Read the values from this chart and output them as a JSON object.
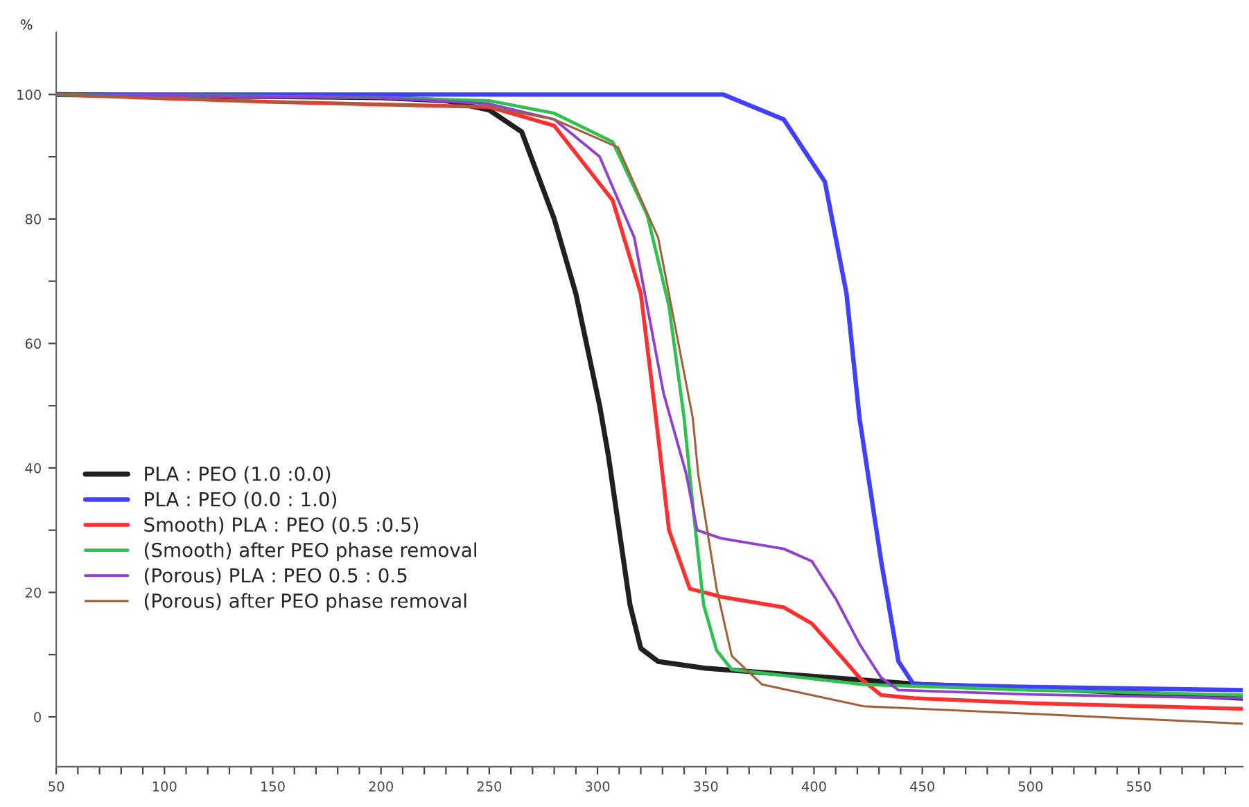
{
  "chart_data": {
    "type": "line",
    "ylabel": "%",
    "xlim": [
      50,
      598
    ],
    "ylim": [
      -8,
      110
    ],
    "xticks": [
      50,
      {
        "value": 60,
        "label": null
      },
      {
        "value": 70,
        "label": null
      },
      {
        "value": 80,
        "label": null
      },
      {
        "value": 90,
        "label": null
      },
      100,
      {
        "value": 110,
        "label": null
      },
      {
        "value": 120,
        "label": null
      },
      {
        "value": 130,
        "label": null
      },
      {
        "value": 140,
        "label": null
      },
      150,
      {
        "value": 160,
        "label": null
      },
      {
        "value": 170,
        "label": null
      },
      {
        "value": 180,
        "label": null
      },
      {
        "value": 190,
        "label": null
      },
      200,
      {
        "value": 210,
        "label": null
      },
      {
        "value": 220,
        "label": null
      },
      {
        "value": 230,
        "label": null
      },
      {
        "value": 240,
        "label": null
      },
      250,
      {
        "value": 260,
        "label": null
      },
      {
        "value": 270,
        "label": null
      },
      {
        "value": 280,
        "label": null
      },
      {
        "value": 290,
        "label": null
      },
      300,
      {
        "value": 310,
        "label": null
      },
      {
        "value": 320,
        "label": null
      },
      {
        "value": 330,
        "label": null
      },
      {
        "value": 340,
        "label": null
      },
      350,
      {
        "value": 360,
        "label": null
      },
      {
        "value": 370,
        "label": null
      },
      {
        "value": 380,
        "label": null
      },
      {
        "value": 390,
        "label": null
      },
      400,
      {
        "value": 410,
        "label": null
      },
      {
        "value": 420,
        "label": null
      },
      {
        "value": 430,
        "label": null
      },
      {
        "value": 440,
        "label": null
      },
      450,
      {
        "value": 460,
        "label": null
      },
      {
        "value": 470,
        "label": null
      },
      {
        "value": 480,
        "label": null
      },
      {
        "value": 490,
        "label": null
      },
      500,
      {
        "value": 510,
        "label": null
      },
      {
        "value": 520,
        "label": null
      },
      {
        "value": 530,
        "label": null
      },
      {
        "value": 540,
        "label": null
      },
      550,
      {
        "value": 560,
        "label": null
      },
      {
        "value": 570,
        "label": null
      },
      {
        "value": 580,
        "label": null
      },
      {
        "value": 590,
        "label": null
      }
    ],
    "yticks": [
      0,
      {
        "value": 10,
        "label": null
      },
      20,
      {
        "value": 30,
        "label": null
      },
      40,
      {
        "value": 50,
        "label": null
      },
      60,
      {
        "value": 70,
        "label": null
      },
      80,
      {
        "value": 90,
        "label": null
      },
      100
    ],
    "grid": false,
    "legend": "left",
    "line_style": "solid",
    "marker": "none",
    "series": [
      {
        "name": "PLA : PEO (1.0 :0.0)",
        "color": "#202020",
        "x": [
          50,
          200,
          230,
          250,
          265,
          280,
          290,
          301,
          305,
          310,
          315,
          320,
          328,
          350,
          400,
          450,
          500,
          550,
          598
        ],
        "values": [
          100,
          99.5,
          99,
          97.5,
          94,
          80,
          68,
          50,
          42,
          30,
          18,
          11,
          8.9,
          7.8,
          6.5,
          5.2,
          4.6,
          3.8,
          3.0
        ]
      },
      {
        "name": "PLA : PEO (0.0 : 1.0)",
        "color": "#4040ff",
        "x": [
          50,
          300,
          358,
          386,
          405,
          415,
          421,
          431,
          439,
          446,
          500,
          598
        ],
        "values": [
          100,
          100,
          100,
          96,
          86,
          68,
          48,
          25,
          8.9,
          5.2,
          4.8,
          4.3
        ]
      },
      {
        "name": "Smooth) PLA : PEO (0.5 :0.5)",
        "color": "#ff3030",
        "x": [
          50,
          150,
          250,
          280,
          307,
          320,
          327,
          333,
          342.6,
          357,
          386,
          399,
          410,
          421,
          431,
          446,
          500,
          598
        ],
        "values": [
          100,
          98.8,
          98,
          95,
          83,
          68,
          48,
          30,
          20.6,
          19.3,
          17.6,
          15,
          10.7,
          6.3,
          3.5,
          3,
          2.2,
          1.3
        ]
      },
      {
        "name": "(Smooth) after PEO phase removal",
        "color": "#30c050",
        "x": [
          50,
          200,
          250,
          280,
          307,
          323,
          333,
          340,
          344,
          349,
          355,
          362,
          423,
          500,
          598
        ],
        "values": [
          100,
          99.5,
          99,
          97,
          92.4,
          80.6,
          66,
          48,
          34,
          18,
          10.7,
          7.6,
          5.2,
          4.3,
          3.5
        ]
      },
      {
        "name": "(Porous) PLA : PEO 0.5 : 0.5",
        "color": "#9040d0",
        "x": [
          50,
          200,
          250,
          280,
          301,
          317,
          330.5,
          341,
          346,
          357,
          386,
          399,
          410,
          421,
          431,
          439,
          500,
          598
        ],
        "values": [
          100,
          99.5,
          98.5,
          96,
          90,
          77,
          52,
          39,
          30,
          28.7,
          27,
          25,
          19,
          11.7,
          6.3,
          4.3,
          3.6,
          3.0
        ]
      },
      {
        "name": "(Porous) after PEO phase removal",
        "color": "#a0603a",
        "x": [
          50,
          150,
          250,
          280,
          309.5,
          328,
          344,
          346.5,
          355,
          362,
          376,
          423,
          500,
          598
        ],
        "values": [
          100,
          98.8,
          98,
          96,
          91.5,
          77,
          48,
          39,
          20.6,
          9.8,
          5.2,
          1.7,
          0.5,
          -1.1
        ]
      }
    ]
  }
}
